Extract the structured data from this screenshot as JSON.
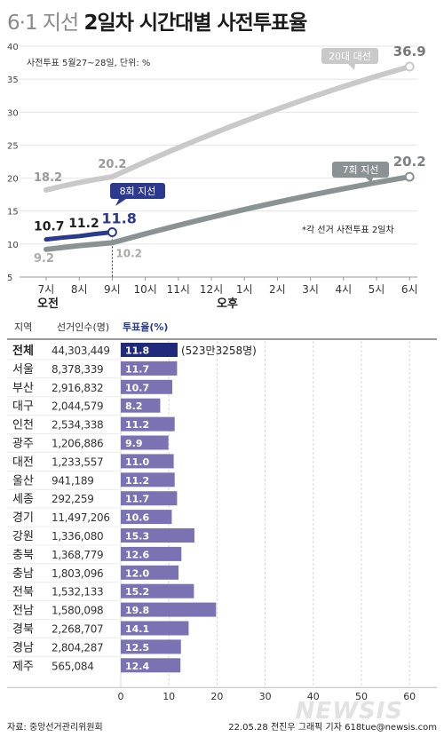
{
  "header": {
    "title_part1": "6·1 지선",
    "title_part2": "2일차 시간대별 사전투표율"
  },
  "line_chart": {
    "subtitle": "사전투표 5월27~28일, 단위: %",
    "note": "*각 선거 사전투표 2일차",
    "am_label": "오전",
    "pm_label": "오후",
    "colors": {
      "current": "#2b3a8f",
      "local7": "#8a9294",
      "pres20": "#c9c9c9"
    }
  },
  "chart_data": [
    {
      "type": "line",
      "x": [
        "7시",
        "8시",
        "9시",
        "10시",
        "11시",
        "12시",
        "1시",
        "2시",
        "3시",
        "4시",
        "5시",
        "6시"
      ],
      "ylim": [
        5,
        40
      ],
      "yticks": [
        5,
        10,
        15,
        20,
        25,
        30,
        35,
        40
      ],
      "series": [
        {
          "name": "20대 대선",
          "points": [
            [
              0,
              18.2
            ],
            [
              2,
              20.2
            ],
            [
              11,
              36.9
            ]
          ],
          "labels": [
            "18.2",
            "20.2",
            "36.9"
          ]
        },
        {
          "name": "7회 지선",
          "points": [
            [
              0,
              9.2
            ],
            [
              2,
              10.2
            ],
            [
              11,
              20.2
            ]
          ],
          "labels": [
            "9.2",
            "10.2",
            "20.2"
          ]
        },
        {
          "name": "8회 지선",
          "points": [
            [
              0,
              10.7
            ],
            [
              1,
              11.2
            ],
            [
              2,
              11.8
            ]
          ],
          "labels": [
            "10.7",
            "11.2",
            "11.8"
          ]
        }
      ]
    },
    {
      "type": "bar",
      "orientation": "horizontal",
      "headers": {
        "region": "지역",
        "voters": "선거인수(명)",
        "turnout": "투표율(%)"
      },
      "xlim": [
        0,
        60
      ],
      "xticks": [
        0,
        10,
        20,
        30,
        40,
        50,
        60
      ],
      "total_annotation": "(523만3258명)",
      "rows": [
        {
          "region": "전체",
          "voters": "44,303,449",
          "value": 11.8,
          "label": "11.8"
        },
        {
          "region": "서울",
          "voters": "8,378,339",
          "value": 11.7,
          "label": "11.7"
        },
        {
          "region": "부산",
          "voters": "2,916,832",
          "value": 10.7,
          "label": "10.7"
        },
        {
          "region": "대구",
          "voters": "2,044,579",
          "value": 8.2,
          "label": "8.2"
        },
        {
          "region": "인천",
          "voters": "2,534,338",
          "value": 11.2,
          "label": "11.2"
        },
        {
          "region": "광주",
          "voters": "1,206,886",
          "value": 9.9,
          "label": "9.9"
        },
        {
          "region": "대전",
          "voters": "1,233,557",
          "value": 11.0,
          "label": "11.0"
        },
        {
          "region": "울산",
          "voters": "941,189",
          "value": 11.2,
          "label": "11.2"
        },
        {
          "region": "세종",
          "voters": "292,259",
          "value": 11.7,
          "label": "11.7"
        },
        {
          "region": "경기",
          "voters": "11,497,206",
          "value": 10.6,
          "label": "10.6"
        },
        {
          "region": "강원",
          "voters": "1,336,080",
          "value": 15.3,
          "label": "15.3"
        },
        {
          "region": "충북",
          "voters": "1,368,779",
          "value": 12.6,
          "label": "12.6"
        },
        {
          "region": "충남",
          "voters": "1,803,096",
          "value": 12.0,
          "label": "12.0"
        },
        {
          "region": "전북",
          "voters": "1,532,133",
          "value": 15.2,
          "label": "15.2"
        },
        {
          "region": "전남",
          "voters": "1,580,098",
          "value": 19.8,
          "label": "19.8"
        },
        {
          "region": "경북",
          "voters": "2,268,707",
          "value": 14.1,
          "label": "14.1"
        },
        {
          "region": "경남",
          "voters": "2,804,287",
          "value": 12.5,
          "label": "12.5"
        },
        {
          "region": "제주",
          "voters": "565,084",
          "value": 12.4,
          "label": "12.4"
        }
      ]
    }
  ],
  "footer": {
    "source": "자료: 중앙선거관리위원회",
    "credit": "22.05.28 전진우 그래픽 기자 618tue@newsis.com",
    "watermark": "NEWSIS"
  }
}
